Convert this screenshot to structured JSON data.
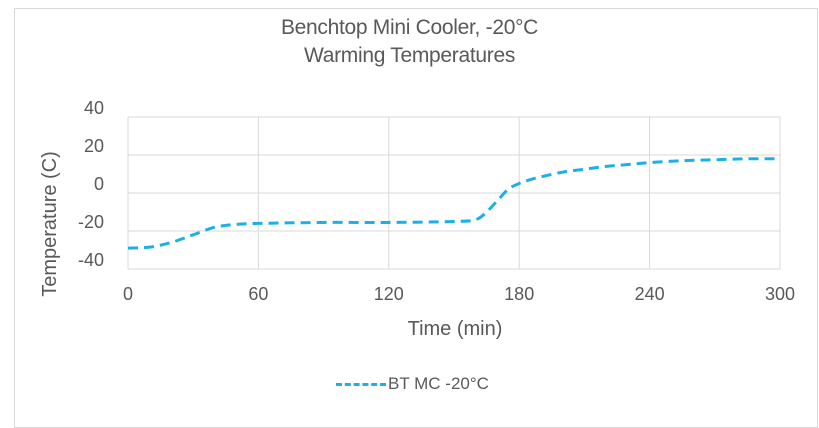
{
  "chart_data": {
    "type": "line",
    "title_line1": "Benchtop Mini Cooler, -20°C",
    "title_line2": "Warming Temperatures",
    "xlabel": "Time (min)",
    "ylabel": "Temperature (C)",
    "xlim": [
      0,
      300
    ],
    "ylim": [
      -40,
      40
    ],
    "x_ticks": [
      0,
      60,
      120,
      180,
      240,
      300
    ],
    "y_ticks": [
      40,
      20,
      0,
      -20,
      -40
    ],
    "grid": true,
    "legend_position": "bottom",
    "series": [
      {
        "name": "BT MC -20°C",
        "color": "#1cb0e8",
        "style": "dashed",
        "x": [
          0,
          10,
          20,
          30,
          40,
          50,
          60,
          90,
          120,
          150,
          160,
          165,
          170,
          175,
          180,
          185,
          190,
          200,
          210,
          220,
          230,
          240,
          255,
          270,
          285,
          300
        ],
        "y": [
          -29,
          -28.5,
          -26,
          -22,
          -18,
          -16.5,
          -16,
          -15.5,
          -15.5,
          -15,
          -14,
          -10,
          -4,
          2,
          5,
          7,
          8.5,
          11,
          12.5,
          14,
          15,
          16,
          17,
          17.5,
          18,
          18
        ]
      }
    ]
  }
}
